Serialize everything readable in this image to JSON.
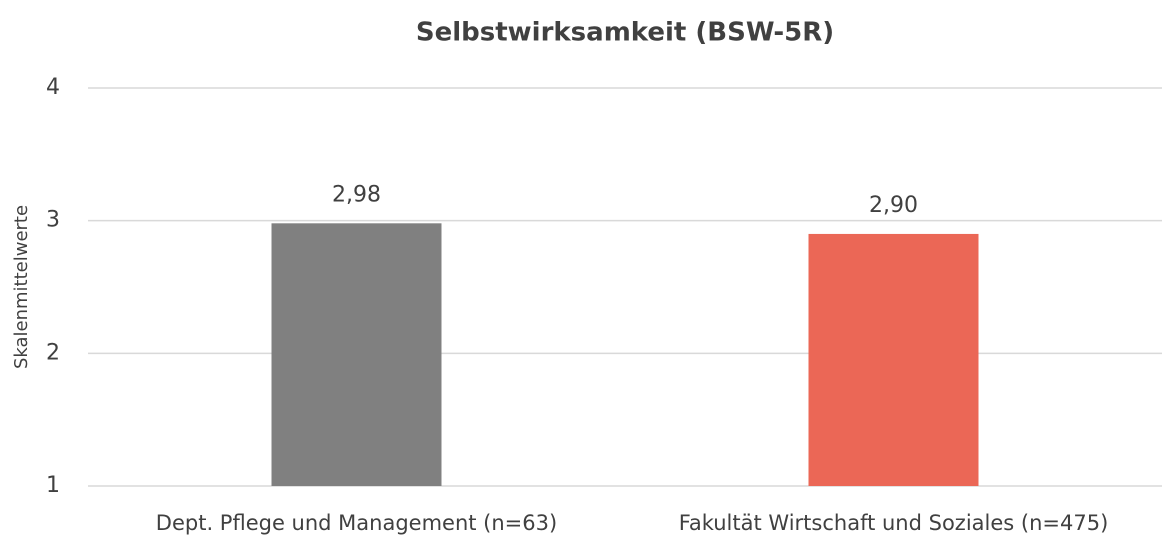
{
  "chart_data": {
    "type": "bar",
    "title": "Selbstwirksamkeit (BSW-5R)",
    "y_label": "Skalenmittelwerte",
    "categories": [
      "Dept. Pflege und Management (n=63)",
      "Fakultät Wirtschaft und Soziales (n=475)"
    ],
    "values": [
      2.98,
      2.9
    ],
    "value_labels": [
      "2,98",
      "2,90"
    ],
    "colors": [
      "#808080",
      "#eb6756"
    ],
    "ylim": [
      1,
      4
    ],
    "yticks": [
      1,
      2,
      3,
      4
    ],
    "grid": true
  }
}
